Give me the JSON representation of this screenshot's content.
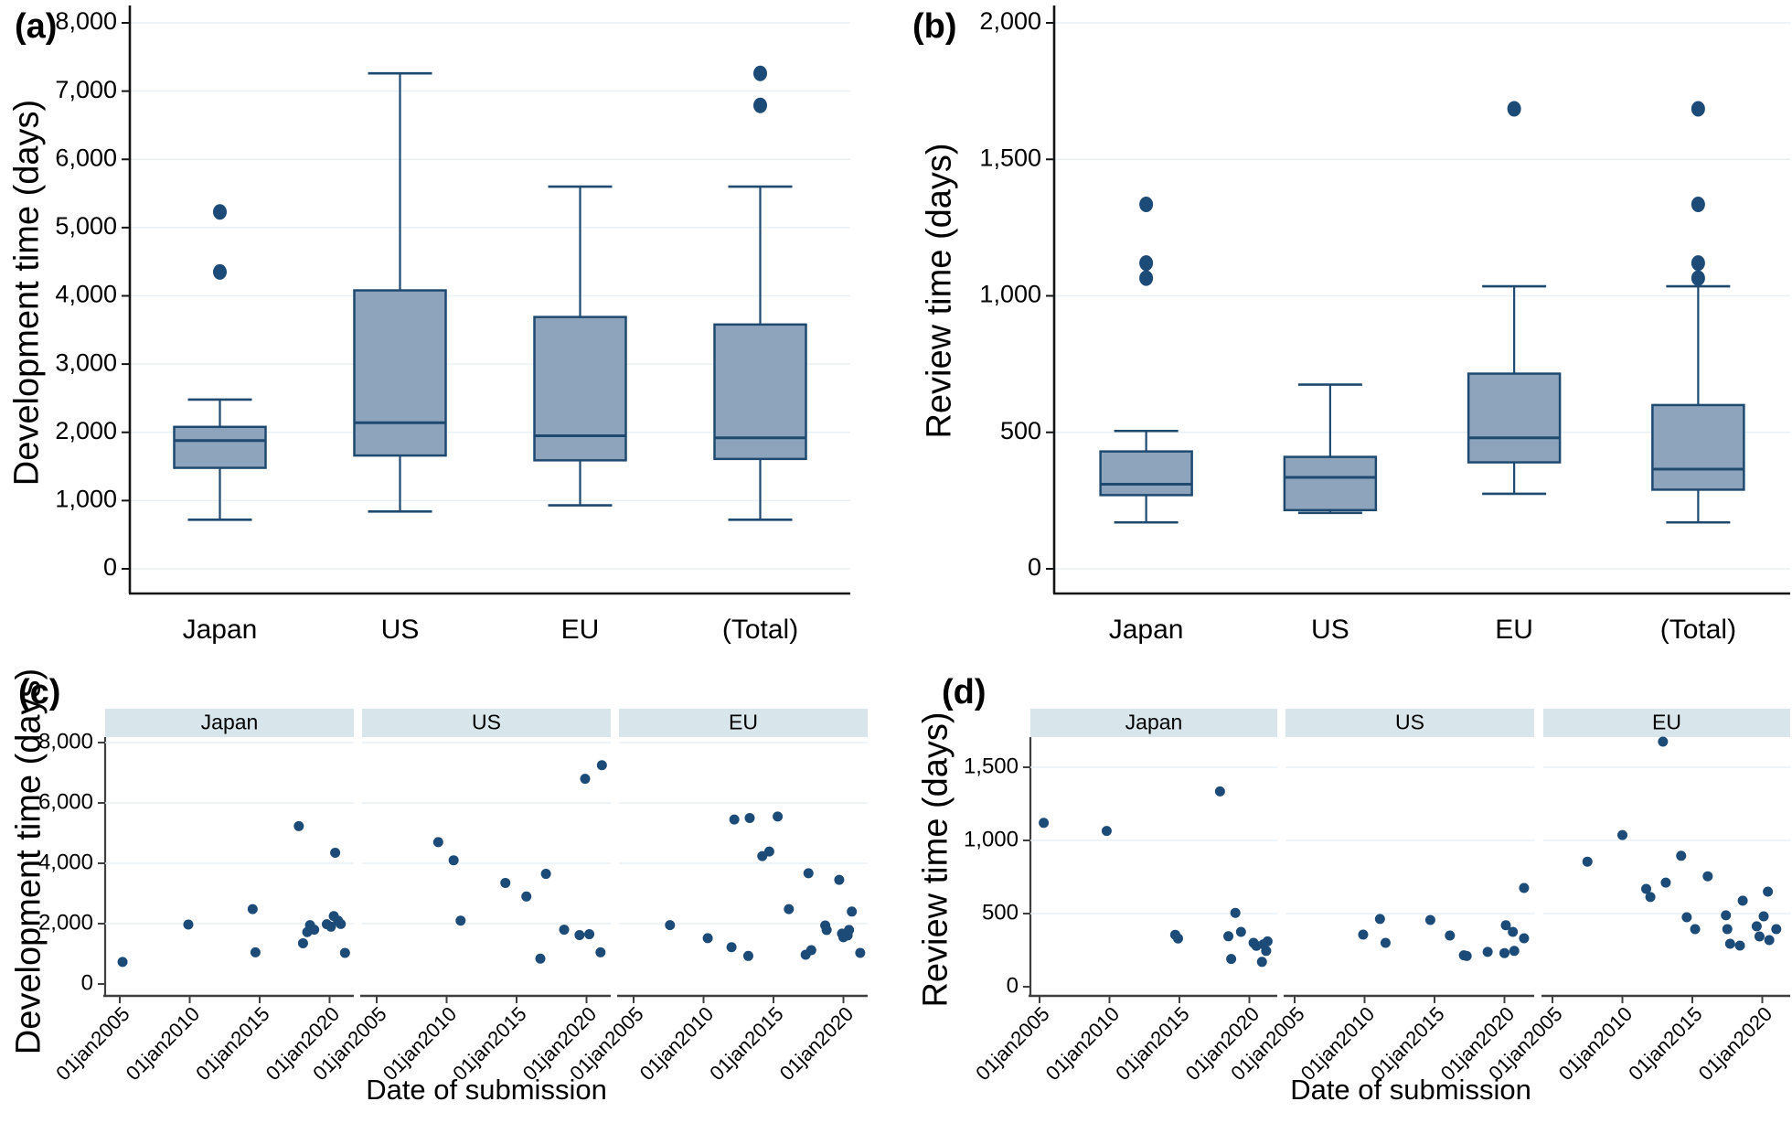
{
  "colors": {
    "box_fill": "#8DA4BC",
    "box_stroke": "#1F4A70",
    "dot": "#1D4B77",
    "strip_bg": "#D8E5EB",
    "grid": "#E9F1F5",
    "axis_box": "#141414",
    "axis_scatter": "#3F3F3F",
    "text": "#000000"
  },
  "chart_data": [
    {
      "panel_label": "(a)",
      "type": "box",
      "ylabel": "Development time (days)",
      "ylim": [
        0,
        8000
      ],
      "yticks": [
        0,
        1000,
        2000,
        3000,
        4000,
        5000,
        6000,
        7000,
        8000
      ],
      "categories": [
        "Japan",
        "US",
        "EU",
        "(Total)"
      ],
      "boxes": [
        {
          "category": "Japan",
          "whislo": 720,
          "q1": 1480,
          "med": 1880,
          "q3": 2080,
          "whishi": 2480,
          "outliers": [
            4350,
            5230
          ]
        },
        {
          "category": "US",
          "whislo": 840,
          "q1": 1660,
          "med": 2140,
          "q3": 4080,
          "whishi": 7260,
          "outliers": []
        },
        {
          "category": "EU",
          "whislo": 930,
          "q1": 1590,
          "med": 1950,
          "q3": 3690,
          "whishi": 5600,
          "outliers": []
        },
        {
          "category": "(Total)",
          "whislo": 720,
          "q1": 1610,
          "med": 1920,
          "q3": 3580,
          "whishi": 5600,
          "outliers": [
            6790,
            7260
          ]
        }
      ]
    },
    {
      "panel_label": "(b)",
      "type": "box",
      "ylabel": "Review time (days)",
      "ylim": [
        0,
        2000
      ],
      "yticks": [
        0,
        500,
        1000,
        1500,
        2000
      ],
      "categories": [
        "Japan",
        "US",
        "EU",
        "(Total)"
      ],
      "boxes": [
        {
          "category": "Japan",
          "whislo": 170,
          "q1": 270,
          "med": 310,
          "q3": 430,
          "whishi": 505,
          "outliers": [
            1065,
            1120,
            1335
          ]
        },
        {
          "category": "US",
          "whislo": 205,
          "q1": 215,
          "med": 335,
          "q3": 410,
          "whishi": 675,
          "outliers": []
        },
        {
          "category": "EU",
          "whislo": 275,
          "q1": 390,
          "med": 480,
          "q3": 715,
          "whishi": 1035,
          "outliers": [
            1685
          ]
        },
        {
          "category": "(Total)",
          "whislo": 170,
          "q1": 290,
          "med": 365,
          "q3": 600,
          "whishi": 1035,
          "outliers": [
            1065,
            1120,
            1335,
            1685
          ]
        }
      ]
    },
    {
      "panel_label": "(c)",
      "type": "scatter",
      "ylabel": "Development time (days)",
      "xlabel": "Date of submission",
      "ylim": [
        0,
        8000
      ],
      "yticks": [
        0,
        2000,
        4000,
        6000,
        8000
      ],
      "xticks": [
        {
          "label": "01jan2005",
          "year": 2005
        },
        {
          "label": "01jan2010",
          "year": 2010
        },
        {
          "label": "01jan2015",
          "year": 2015
        },
        {
          "label": "01jan2020",
          "year": 2020
        }
      ],
      "facets": [
        {
          "name": "Japan",
          "points": [
            [
              2005.2,
              730
            ],
            [
              2009.9,
              1970
            ],
            [
              2014.5,
              2480
            ],
            [
              2014.7,
              1050
            ],
            [
              2017.8,
              5230
            ],
            [
              2018.1,
              1350
            ],
            [
              2018.4,
              1720
            ],
            [
              2018.6,
              1950
            ],
            [
              2018.9,
              1800
            ],
            [
              2019.8,
              1980
            ],
            [
              2020.1,
              1900
            ],
            [
              2020.3,
              2250
            ],
            [
              2020.4,
              4350
            ],
            [
              2020.6,
              2100
            ],
            [
              2020.8,
              1990
            ],
            [
              2021.1,
              1030
            ]
          ]
        },
        {
          "name": "US",
          "points": [
            [
              2009.4,
              4700
            ],
            [
              2010.5,
              4100
            ],
            [
              2011.0,
              2100
            ],
            [
              2014.2,
              3350
            ],
            [
              2015.7,
              2900
            ],
            [
              2016.7,
              840
            ],
            [
              2017.1,
              3650
            ],
            [
              2018.4,
              1800
            ],
            [
              2019.5,
              1620
            ],
            [
              2019.9,
              6800
            ],
            [
              2020.2,
              1650
            ],
            [
              2021.0,
              1050
            ],
            [
              2021.1,
              7250
            ]
          ]
        },
        {
          "name": "EU",
          "points": [
            [
              2007.6,
              1950
            ],
            [
              2010.3,
              1520
            ],
            [
              2012.0,
              1220
            ],
            [
              2012.2,
              5450
            ],
            [
              2013.2,
              930
            ],
            [
              2013.3,
              5500
            ],
            [
              2014.2,
              4240
            ],
            [
              2014.7,
              4390
            ],
            [
              2015.3,
              5550
            ],
            [
              2016.1,
              2480
            ],
            [
              2017.3,
              970
            ],
            [
              2017.5,
              3670
            ],
            [
              2017.7,
              1120
            ],
            [
              2018.7,
              1940
            ],
            [
              2018.8,
              1790
            ],
            [
              2019.7,
              3450
            ],
            [
              2019.9,
              1670
            ],
            [
              2020.0,
              1550
            ],
            [
              2020.3,
              1610
            ],
            [
              2020.4,
              1790
            ],
            [
              2020.6,
              2400
            ],
            [
              2021.2,
              1030
            ]
          ]
        }
      ]
    },
    {
      "panel_label": "(d)",
      "type": "scatter",
      "ylabel": "Review time (days)",
      "xlabel": "Date of submission",
      "ylim": [
        0,
        1750
      ],
      "yticks": [
        0,
        500,
        1000,
        1500
      ],
      "xticks": [
        {
          "label": "01jan2005",
          "year": 2005
        },
        {
          "label": "01jan2010",
          "year": 2010
        },
        {
          "label": "01jan2015",
          "year": 2015
        },
        {
          "label": "01jan2020",
          "year": 2020
        }
      ],
      "facets": [
        {
          "name": "Japan",
          "points": [
            [
              2005.3,
              1120
            ],
            [
              2009.8,
              1065
            ],
            [
              2014.7,
              355
            ],
            [
              2014.9,
              330
            ],
            [
              2017.9,
              1335
            ],
            [
              2018.5,
              345
            ],
            [
              2018.7,
              190
            ],
            [
              2019.0,
              505
            ],
            [
              2019.4,
              375
            ],
            [
              2020.3,
              300
            ],
            [
              2020.5,
              280
            ],
            [
              2020.9,
              170
            ],
            [
              2021.0,
              290
            ],
            [
              2021.2,
              245
            ],
            [
              2021.3,
              310
            ]
          ]
        },
        {
          "name": "US",
          "points": [
            [
              2009.9,
              356
            ],
            [
              2011.1,
              463
            ],
            [
              2011.5,
              300
            ],
            [
              2014.7,
              456
            ],
            [
              2016.1,
              350
            ],
            [
              2017.1,
              215
            ],
            [
              2017.3,
              210
            ],
            [
              2018.8,
              238
            ],
            [
              2020.0,
              230
            ],
            [
              2020.1,
              420
            ],
            [
              2020.6,
              375
            ],
            [
              2020.7,
              245
            ],
            [
              2021.4,
              331
            ],
            [
              2021.4,
              675
            ]
          ]
        },
        {
          "name": "EU",
          "points": [
            [
              2007.5,
              855
            ],
            [
              2010.0,
              1037
            ],
            [
              2011.7,
              669
            ],
            [
              2012.0,
              613
            ],
            [
              2012.9,
              1675
            ],
            [
              2013.1,
              712
            ],
            [
              2014.2,
              895
            ],
            [
              2014.6,
              475
            ],
            [
              2015.2,
              394
            ],
            [
              2016.1,
              755
            ],
            [
              2017.4,
              488
            ],
            [
              2017.5,
              394
            ],
            [
              2017.7,
              294
            ],
            [
              2018.4,
              281
            ],
            [
              2018.6,
              588
            ],
            [
              2019.6,
              413
            ],
            [
              2019.8,
              344
            ],
            [
              2020.1,
              481
            ],
            [
              2020.4,
              650
            ],
            [
              2020.5,
              319
            ],
            [
              2021.0,
              394
            ]
          ]
        }
      ]
    }
  ]
}
